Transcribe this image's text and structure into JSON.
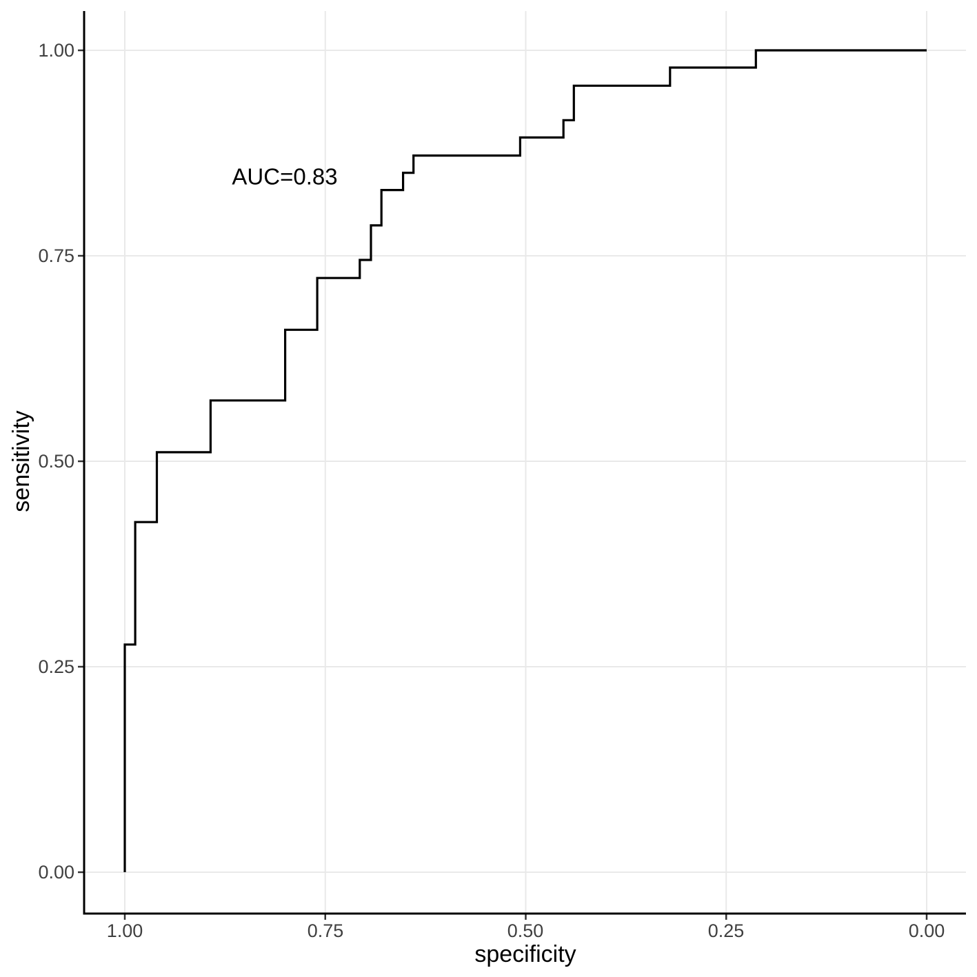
{
  "colors": {
    "background": "#FFFFFF",
    "grid": "#E9E9E9",
    "axis_line": "#000000",
    "curve": "#000000",
    "tick_label": "#404040",
    "axis_title": "#000000"
  },
  "chart_data": {
    "type": "line",
    "subtype": "roc-step-curve",
    "title": "",
    "xlabel": "specificity",
    "ylabel": "sensitivity",
    "x_axis_reversed": true,
    "xlim": [
      1.0,
      0.0
    ],
    "ylim": [
      0.0,
      1.0
    ],
    "grid": "major",
    "x_tick_values": [
      1.0,
      0.75,
      0.5,
      0.25,
      0.0
    ],
    "x_tick_labels": [
      "1.00",
      "0.75",
      "0.50",
      "0.25",
      "0.00"
    ],
    "y_tick_values": [
      0.0,
      0.25,
      0.5,
      0.75,
      1.0
    ],
    "y_tick_labels": [
      "0.00",
      "0.25",
      "0.50",
      "0.75",
      "1.00"
    ],
    "annotation": {
      "label": "AUC=0.83",
      "specificity": 0.8,
      "sensitivity": 0.847
    },
    "auc": 0.83,
    "series": [
      {
        "name": "roc-curve",
        "step": true,
        "points_spec_sens": [
          [
            1.0,
            0.0
          ],
          [
            1.0,
            0.277
          ],
          [
            0.987,
            0.426
          ],
          [
            0.96,
            0.511
          ],
          [
            0.893,
            0.574
          ],
          [
            0.8,
            0.66
          ],
          [
            0.76,
            0.723
          ],
          [
            0.707,
            0.745
          ],
          [
            0.693,
            0.787
          ],
          [
            0.68,
            0.83
          ],
          [
            0.653,
            0.851
          ],
          [
            0.64,
            0.872
          ],
          [
            0.507,
            0.894
          ],
          [
            0.453,
            0.915
          ],
          [
            0.44,
            0.957
          ],
          [
            0.32,
            0.979
          ],
          [
            0.213,
            1.0
          ],
          [
            0.0,
            1.0
          ]
        ]
      }
    ]
  }
}
